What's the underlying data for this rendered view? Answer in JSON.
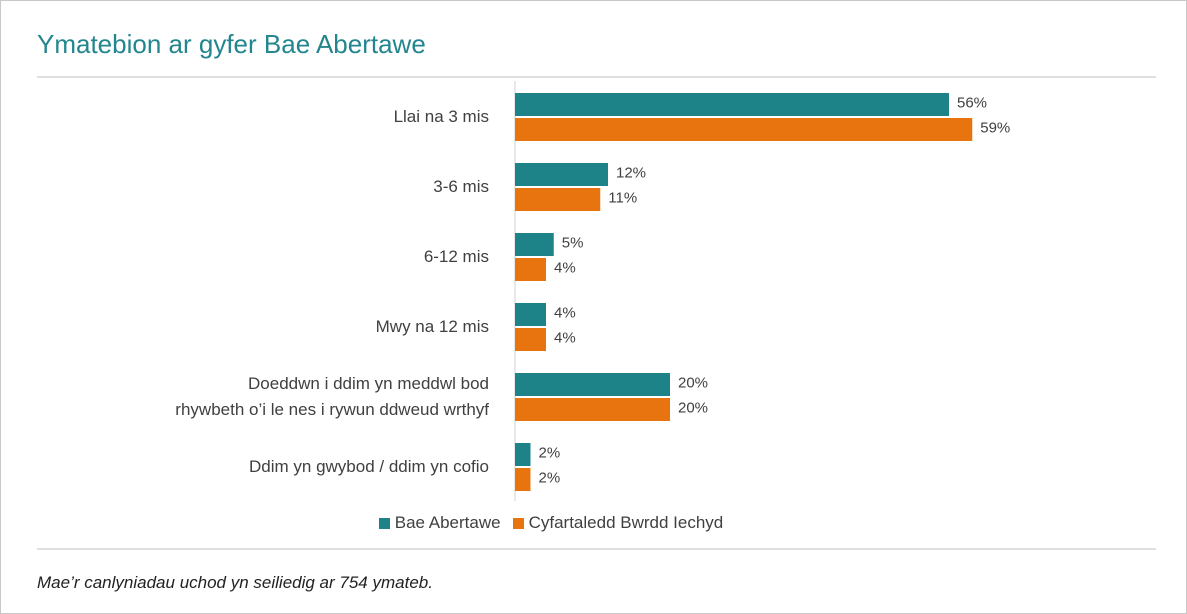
{
  "chart_data": {
    "type": "hbar",
    "title": "Ymatebion ar gyfer Bae Abertawe",
    "categories": [
      "Llai na 3 mis",
      "3-6 mis",
      "6-12 mis",
      "Mwy na 12 mis",
      "Doeddwn i ddim yn meddwl bod rhywbeth o’i le nes i rywun ddweud wrthyf",
      "Ddim yn gwybod / ddim yn cofio"
    ],
    "series": [
      {
        "name": "Bae Abertawe",
        "color": "#1e8289",
        "values": [
          56,
          12,
          5,
          4,
          20,
          2
        ],
        "value_labels": [
          "56%",
          "12%",
          "5%",
          "4%",
          "20%",
          "2%"
        ]
      },
      {
        "name": "Cyfartaledd Bwrdd Iechyd",
        "color": "#e8740f",
        "values": [
          59,
          11,
          4,
          4,
          20,
          2
        ],
        "value_labels": [
          "59%",
          "11%",
          "4%",
          "4%",
          "20%",
          "2%"
        ]
      }
    ],
    "legend": "bottom",
    "footnote": "Mae’r canlyniadau uchod yn seiliedig ar 754 ymateb."
  }
}
